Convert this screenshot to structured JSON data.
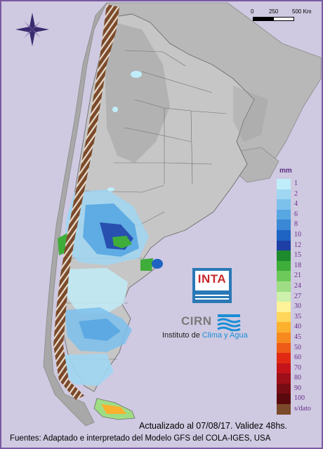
{
  "map": {
    "scale_bar": {
      "labels": [
        "0",
        "250",
        "500 Km"
      ]
    },
    "legend": {
      "unit": "mm",
      "classes": [
        {
          "label": "1",
          "color": "#bfeefa"
        },
        {
          "label": "2",
          "color": "#9fd6f2"
        },
        {
          "label": "4",
          "color": "#7cc0ec"
        },
        {
          "label": "6",
          "color": "#58a6e2"
        },
        {
          "label": "8",
          "color": "#3a88d6"
        },
        {
          "label": "10",
          "color": "#1f64c2"
        },
        {
          "label": "12",
          "color": "#1e3fa6"
        },
        {
          "label": "15",
          "color": "#1e8a2e"
        },
        {
          "label": "18",
          "color": "#3fad3a"
        },
        {
          "label": "21",
          "color": "#6cc95a"
        },
        {
          "label": "24",
          "color": "#9fdd84"
        },
        {
          "label": "27",
          "color": "#cdf0aa"
        },
        {
          "label": "30",
          "color": "#fff39a"
        },
        {
          "label": "35",
          "color": "#ffd65a"
        },
        {
          "label": "40",
          "color": "#fbb02e"
        },
        {
          "label": "45",
          "color": "#f68a1e"
        },
        {
          "label": "50",
          "color": "#ee5a18"
        },
        {
          "label": "60",
          "color": "#e02a14"
        },
        {
          "label": "70",
          "color": "#c4141a"
        },
        {
          "label": "80",
          "color": "#9c0f18"
        },
        {
          "label": "90",
          "color": "#780c14"
        },
        {
          "label": "100",
          "color": "#5a0a0e"
        },
        {
          "label": "s/dato",
          "color": "#7b4a2a"
        }
      ]
    },
    "logos": {
      "inta": "INTA",
      "cirn": "CIRN",
      "institute_prefix": "Instituto de ",
      "institute_highlight": "Clima y Agua"
    },
    "caption_updated": "Actualizado al 07/08/17. Validez 48hs.",
    "caption_sources": "Fuentes: Adaptado e interpretado del Modelo GFS del COLA-IGES, USA"
  }
}
